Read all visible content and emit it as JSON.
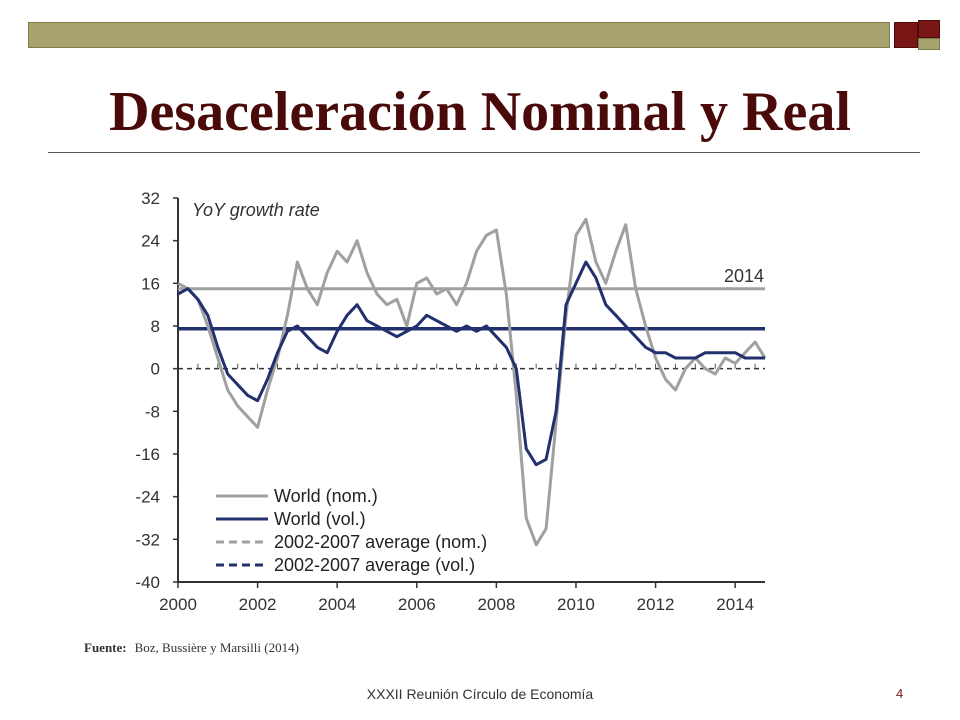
{
  "slide": {
    "title": "Desaceleración Nominal y Real",
    "source_label": "Fuente:",
    "source_text": "Boz, Bussière y Marsilli (2014)",
    "footer": "XXXII Reunión Círculo de Economía",
    "page_number": "4"
  },
  "chart_data": {
    "type": "line",
    "annotation": "YoY growth rate",
    "label_2014": "2014",
    "xlim": [
      2000,
      2014.75
    ],
    "ylim": [
      -40,
      32
    ],
    "x_ticks": [
      "2000",
      "2002",
      "2004",
      "2006",
      "2008",
      "2010",
      "2012",
      "2014"
    ],
    "y_ticks": [
      "32",
      "24",
      "16",
      "8",
      "0",
      "-8",
      "-16",
      "-24",
      "-32",
      "-40"
    ],
    "legend": [
      "World (nom.)",
      "World (vol.)",
      "2002-2007 average (nom.)",
      "2002-2007 average (vol.)"
    ],
    "colors": {
      "nominal": "#a0a0a0",
      "volume": "#23306e"
    },
    "series": [
      {
        "name": "World (nom.)",
        "x": [
          2000,
          2000.25,
          2000.5,
          2000.75,
          2001,
          2001.25,
          2001.5,
          2001.75,
          2002,
          2002.25,
          2002.5,
          2002.75,
          2003,
          2003.25,
          2003.5,
          2003.75,
          2004,
          2004.25,
          2004.5,
          2004.75,
          2005,
          2005.25,
          2005.5,
          2005.75,
          2006,
          2006.25,
          2006.5,
          2006.75,
          2007,
          2007.25,
          2007.5,
          2007.75,
          2008,
          2008.25,
          2008.5,
          2008.75,
          2009,
          2009.25,
          2009.5,
          2009.75,
          2010,
          2010.25,
          2010.5,
          2010.75,
          2011,
          2011.25,
          2011.5,
          2011.75,
          2012,
          2012.25,
          2012.5,
          2012.75,
          2013,
          2013.25,
          2013.5,
          2013.75,
          2014,
          2014.25,
          2014.5,
          2014.75
        ],
        "values": [
          16,
          15,
          13,
          8,
          2,
          -4,
          -7,
          -9,
          -11,
          -4,
          2,
          10,
          20,
          15,
          12,
          18,
          22,
          20,
          24,
          18,
          14,
          12,
          13,
          8,
          16,
          17,
          14,
          15,
          12,
          16,
          22,
          25,
          26,
          14,
          -5,
          -28,
          -33,
          -30,
          -10,
          10,
          25,
          28,
          20,
          16,
          22,
          27,
          15,
          8,
          2,
          -2,
          -4,
          0,
          2,
          0,
          -1,
          2,
          1,
          3,
          5,
          2
        ]
      },
      {
        "name": "World (vol.)",
        "x": [
          2000,
          2000.25,
          2000.5,
          2000.75,
          2001,
          2001.25,
          2001.5,
          2001.75,
          2002,
          2002.25,
          2002.5,
          2002.75,
          2003,
          2003.25,
          2003.5,
          2003.75,
          2004,
          2004.25,
          2004.5,
          2004.75,
          2005,
          2005.25,
          2005.5,
          2005.75,
          2006,
          2006.25,
          2006.5,
          2006.75,
          2007,
          2007.25,
          2007.5,
          2007.75,
          2008,
          2008.25,
          2008.5,
          2008.75,
          2009,
          2009.25,
          2009.5,
          2009.75,
          2010,
          2010.25,
          2010.5,
          2010.75,
          2011,
          2011.25,
          2011.5,
          2011.75,
          2012,
          2012.25,
          2012.5,
          2012.75,
          2013,
          2013.25,
          2013.5,
          2013.75,
          2014,
          2014.25,
          2014.5,
          2014.75
        ],
        "values": [
          14,
          15,
          13,
          10,
          4,
          -1,
          -3,
          -5,
          -6,
          -2,
          3,
          7,
          8,
          6,
          4,
          3,
          7,
          10,
          12,
          9,
          8,
          7,
          6,
          7,
          8,
          10,
          9,
          8,
          7,
          8,
          7,
          8,
          6,
          4,
          0,
          -15,
          -18,
          -17,
          -8,
          12,
          16,
          20,
          17,
          12,
          10,
          8,
          6,
          4,
          3,
          3,
          2,
          2,
          2,
          3,
          3,
          3,
          3,
          2,
          2,
          2
        ]
      },
      {
        "name": "2002-2007 average (nom.)",
        "x": [
          2000,
          2014.75
        ],
        "values": [
          15,
          15
        ]
      },
      {
        "name": "2002-2007 average (vol.)",
        "x": [
          2000,
          2014.75
        ],
        "values": [
          7.5,
          7.5
        ]
      }
    ]
  }
}
